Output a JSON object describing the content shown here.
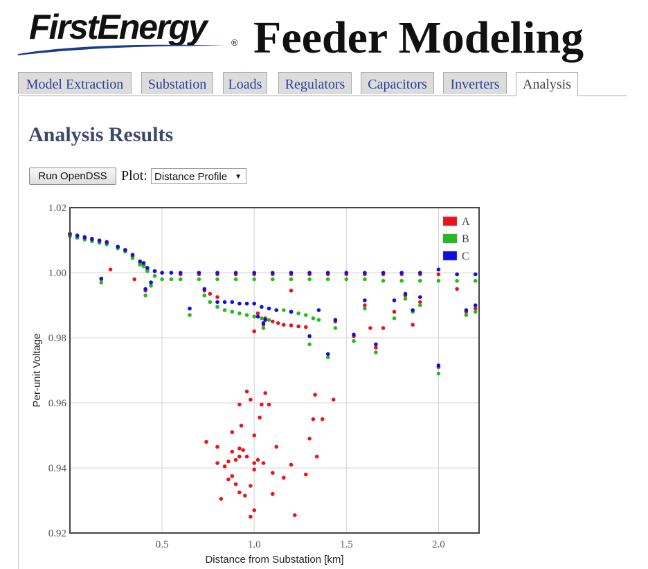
{
  "header": {
    "logo_text": "FirstEnergy",
    "logo_mark": "®",
    "title": "Feeder Modeling"
  },
  "tabs": [
    {
      "label": "Model Extraction"
    },
    {
      "label": "Substation"
    },
    {
      "label": "Loads"
    },
    {
      "label": "Regulators"
    },
    {
      "label": "Capacitors"
    },
    {
      "label": "Inverters"
    },
    {
      "label": "Analysis",
      "active": true
    }
  ],
  "main": {
    "title": "Analysis Results",
    "run_button": "Run OpenDSS",
    "plot_label": "Plot:",
    "plot_select": "Distance Profile",
    "select_arrow": "▼"
  },
  "chart_data": {
    "type": "scatter",
    "title": "",
    "xlabel": "Distance from Substation [km]",
    "ylabel": "Per-unit Voltage",
    "xlim": [
      0,
      2.22
    ],
    "ylim": [
      0.92,
      1.02
    ],
    "xticks": [
      "0.5",
      "1.0",
      "1.5",
      "2.0"
    ],
    "xtick_values": [
      0.5,
      1.0,
      1.5,
      2.0
    ],
    "yticks": [
      "0.92",
      "0.94",
      "0.96",
      "0.98",
      "1.00",
      "1.02"
    ],
    "ytick_values": [
      0.92,
      0.94,
      0.96,
      0.98,
      1.0,
      1.02
    ],
    "grid": true,
    "legend_position": "top-right",
    "colors": {
      "A": "#e8141c",
      "B": "#22bb22",
      "C": "#1010dd"
    },
    "series": [
      {
        "name": "A",
        "color": "#e8141c",
        "points": [
          [
            0.0,
            1.012
          ],
          [
            0.04,
            1.0115
          ],
          [
            0.08,
            1.011
          ],
          [
            0.12,
            1.0105
          ],
          [
            0.16,
            1.01
          ],
          [
            0.2,
            1.0095
          ],
          [
            0.26,
            1.008
          ],
          [
            0.3,
            1.007
          ],
          [
            0.34,
            1.005
          ],
          [
            0.38,
            1.003
          ],
          [
            0.4,
            1.0025
          ],
          [
            0.42,
            1.001
          ],
          [
            0.46,
            1.0005
          ],
          [
            0.5,
            1.0
          ],
          [
            0.55,
            1.0
          ],
          [
            0.6,
            0.9995
          ],
          [
            0.7,
            0.9995
          ],
          [
            0.8,
            0.9995
          ],
          [
            0.9,
            0.9995
          ],
          [
            1.0,
            0.9995
          ],
          [
            1.1,
            0.9995
          ],
          [
            1.2,
            0.9995
          ],
          [
            1.3,
            0.9995
          ],
          [
            1.4,
            0.9995
          ],
          [
            1.5,
            0.9995
          ],
          [
            1.6,
            0.9995
          ],
          [
            1.7,
            0.9995
          ],
          [
            1.8,
            0.9995
          ],
          [
            1.9,
            0.9995
          ],
          [
            2.0,
            0.9995
          ],
          [
            2.1,
            0.9995
          ],
          [
            2.2,
            0.9995
          ],
          [
            0.17,
            0.998
          ],
          [
            0.22,
            1.001
          ],
          [
            0.35,
            0.998
          ],
          [
            0.41,
            0.9945
          ],
          [
            0.44,
            0.997
          ],
          [
            0.65,
            0.989
          ],
          [
            0.73,
            0.9945
          ],
          [
            0.76,
            0.9935
          ],
          [
            0.8,
            0.9925
          ],
          [
            1.02,
            0.9875
          ],
          [
            1.06,
            0.986
          ],
          [
            1.1,
            0.985
          ],
          [
            1.13,
            0.9845
          ],
          [
            1.16,
            0.984
          ],
          [
            1.2,
            0.9838
          ],
          [
            1.24,
            0.9835
          ],
          [
            1.28,
            0.9833
          ],
          [
            1.0,
            0.982
          ],
          [
            1.05,
            0.984
          ],
          [
            1.2,
            0.9945
          ],
          [
            1.44,
            0.985
          ],
          [
            1.54,
            0.9805
          ],
          [
            1.6,
            0.99
          ],
          [
            1.63,
            0.983
          ],
          [
            1.66,
            0.977
          ],
          [
            1.7,
            0.983
          ],
          [
            1.76,
            0.988
          ],
          [
            1.82,
            0.993
          ],
          [
            1.86,
            0.984
          ],
          [
            1.9,
            0.991
          ],
          [
            2.0,
            0.971
          ],
          [
            2.1,
            0.995
          ],
          [
            2.15,
            0.988
          ],
          [
            2.2,
            0.989
          ],
          [
            0.96,
            0.9635
          ],
          [
            1.06,
            0.963
          ],
          [
            0.98,
            0.961
          ],
          [
            1.04,
            0.9595
          ],
          [
            1.08,
            0.9595
          ],
          [
            1.33,
            0.9625
          ],
          [
            1.43,
            0.961
          ],
          [
            0.92,
            0.9595
          ],
          [
            1.03,
            0.9555
          ],
          [
            1.32,
            0.955
          ],
          [
            1.37,
            0.955
          ],
          [
            0.93,
            0.953
          ],
          [
            0.88,
            0.951
          ],
          [
            1.0,
            0.95
          ],
          [
            1.3,
            0.949
          ],
          [
            0.74,
            0.948
          ],
          [
            0.8,
            0.9465
          ],
          [
            1.12,
            0.9465
          ],
          [
            0.92,
            0.946
          ],
          [
            0.94,
            0.9455
          ],
          [
            0.88,
            0.945
          ],
          [
            0.92,
            0.9435
          ],
          [
            0.96,
            0.9435
          ],
          [
            0.9,
            0.9425
          ],
          [
            0.86,
            0.942
          ],
          [
            1.02,
            0.9425
          ],
          [
            1.34,
            0.9435
          ],
          [
            0.8,
            0.9415
          ],
          [
            1.0,
            0.9415
          ],
          [
            1.05,
            0.9415
          ],
          [
            1.2,
            0.941
          ],
          [
            0.84,
            0.9405
          ],
          [
            1.1,
            0.9385
          ],
          [
            0.88,
            0.9375
          ],
          [
            1.28,
            0.938
          ],
          [
            0.86,
            0.9365
          ],
          [
            1.0,
            0.9395
          ],
          [
            1.16,
            0.937
          ],
          [
            0.9,
            0.935
          ],
          [
            0.92,
            0.9325
          ],
          [
            0.95,
            0.9315
          ],
          [
            1.1,
            0.932
          ],
          [
            0.82,
            0.9305
          ],
          [
            0.98,
            0.9345
          ],
          [
            1.0,
            0.927
          ],
          [
            0.98,
            0.925
          ],
          [
            1.22,
            0.9255
          ]
        ]
      },
      {
        "name": "B",
        "color": "#22bb22",
        "points": [
          [
            0.0,
            1.0112
          ],
          [
            0.04,
            1.0107
          ],
          [
            0.08,
            1.0102
          ],
          [
            0.12,
            1.0097
          ],
          [
            0.16,
            1.0092
          ],
          [
            0.2,
            1.0087
          ],
          [
            0.26,
            1.0075
          ],
          [
            0.3,
            1.0065
          ],
          [
            0.34,
            1.0045
          ],
          [
            0.38,
            1.0025
          ],
          [
            0.4,
            1.002
          ],
          [
            0.42,
            1.0005
          ],
          [
            0.46,
            0.999
          ],
          [
            0.5,
            0.998
          ],
          [
            0.55,
            0.998
          ],
          [
            0.6,
            0.998
          ],
          [
            0.7,
            0.998
          ],
          [
            0.8,
            0.998
          ],
          [
            0.9,
            0.998
          ],
          [
            1.0,
            0.998
          ],
          [
            1.1,
            0.998
          ],
          [
            1.2,
            0.998
          ],
          [
            1.3,
            0.998
          ],
          [
            1.4,
            0.998
          ],
          [
            1.5,
            0.998
          ],
          [
            1.6,
            0.998
          ],
          [
            1.7,
            0.9975
          ],
          [
            1.8,
            0.9975
          ],
          [
            1.9,
            0.9975
          ],
          [
            2.0,
            0.9975
          ],
          [
            2.1,
            0.9975
          ],
          [
            2.2,
            0.9975
          ],
          [
            0.17,
            0.997
          ],
          [
            0.41,
            0.993
          ],
          [
            0.44,
            0.996
          ],
          [
            0.65,
            0.987
          ],
          [
            0.73,
            0.993
          ],
          [
            0.76,
            0.991
          ],
          [
            0.8,
            0.9895
          ],
          [
            0.84,
            0.9885
          ],
          [
            0.88,
            0.988
          ],
          [
            0.92,
            0.9875
          ],
          [
            0.96,
            0.987
          ],
          [
            1.0,
            0.9865
          ],
          [
            1.04,
            0.986
          ],
          [
            1.08,
            0.9855
          ],
          [
            1.12,
            0.9885
          ],
          [
            1.16,
            0.9885
          ],
          [
            1.2,
            0.988
          ],
          [
            1.24,
            0.9875
          ],
          [
            1.28,
            0.987
          ],
          [
            1.32,
            0.986
          ],
          [
            1.35,
            0.9855
          ],
          [
            1.05,
            0.983
          ],
          [
            1.44,
            0.983
          ],
          [
            1.54,
            0.979
          ],
          [
            1.6,
            0.989
          ],
          [
            1.66,
            0.9755
          ],
          [
            1.76,
            0.986
          ],
          [
            1.82,
            0.992
          ],
          [
            1.86,
            0.988
          ],
          [
            1.9,
            0.99
          ],
          [
            2.0,
            0.969
          ],
          [
            2.15,
            0.987
          ],
          [
            2.2,
            0.988
          ],
          [
            1.3,
            0.978
          ],
          [
            1.4,
            0.974
          ]
        ]
      },
      {
        "name": "C",
        "color": "#1010dd",
        "points": [
          [
            0.0,
            1.0118
          ],
          [
            0.04,
            1.0113
          ],
          [
            0.08,
            1.0108
          ],
          [
            0.12,
            1.0103
          ],
          [
            0.16,
            1.0098
          ],
          [
            0.2,
            1.0093
          ],
          [
            0.26,
            1.008
          ],
          [
            0.3,
            1.007
          ],
          [
            0.34,
            1.0055
          ],
          [
            0.38,
            1.0035
          ],
          [
            0.4,
            1.003
          ],
          [
            0.42,
            1.0015
          ],
          [
            0.46,
            1.0005
          ],
          [
            0.5,
            1.0
          ],
          [
            0.55,
            1.0
          ],
          [
            0.6,
            1.0
          ],
          [
            0.7,
            1.0
          ],
          [
            0.8,
            1.0
          ],
          [
            0.9,
            1.0
          ],
          [
            1.0,
            1.0
          ],
          [
            1.1,
            1.0
          ],
          [
            1.2,
            1.0
          ],
          [
            1.3,
            1.0
          ],
          [
            1.4,
            1.0
          ],
          [
            1.5,
            1.0
          ],
          [
            1.6,
            1.0
          ],
          [
            1.7,
            1.0
          ],
          [
            1.8,
            1.0
          ],
          [
            1.9,
            1.0
          ],
          [
            2.0,
            1.001
          ],
          [
            2.1,
            0.9995
          ],
          [
            2.2,
            0.9995
          ],
          [
            0.17,
            0.9982
          ],
          [
            0.41,
            0.995
          ],
          [
            0.44,
            0.997
          ],
          [
            0.65,
            0.989
          ],
          [
            0.73,
            0.995
          ],
          [
            0.8,
            0.991
          ],
          [
            0.84,
            0.991
          ],
          [
            0.88,
            0.991
          ],
          [
            0.92,
            0.9905
          ],
          [
            0.96,
            0.9905
          ],
          [
            1.0,
            0.9905
          ],
          [
            1.04,
            0.9895
          ],
          [
            1.08,
            0.989
          ],
          [
            1.12,
            0.9885
          ],
          [
            1.02,
            0.9865
          ],
          [
            1.06,
            0.9855
          ],
          [
            1.05,
            0.9845
          ],
          [
            1.2,
            0.988
          ],
          [
            1.3,
            0.9805
          ],
          [
            1.35,
            0.9885
          ],
          [
            1.4,
            0.975
          ],
          [
            1.44,
            0.9855
          ],
          [
            1.54,
            0.981
          ],
          [
            1.6,
            0.9915
          ],
          [
            1.66,
            0.978
          ],
          [
            1.76,
            0.9915
          ],
          [
            1.82,
            0.9935
          ],
          [
            1.86,
            0.9885
          ],
          [
            1.9,
            0.9925
          ],
          [
            2.0,
            0.9715
          ],
          [
            2.15,
            0.9885
          ],
          [
            2.2,
            0.99
          ]
        ]
      }
    ]
  }
}
